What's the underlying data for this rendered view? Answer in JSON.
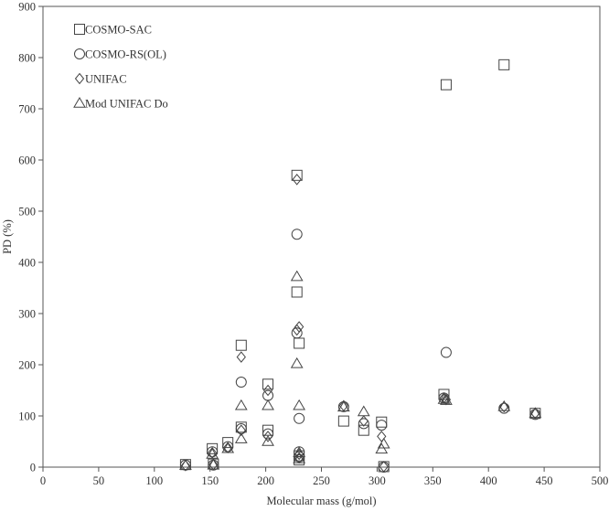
{
  "chart_data": {
    "type": "scatter",
    "title": "",
    "xlabel": "Molecular mass (g/mol)",
    "ylabel": "PD (%)",
    "xlim": [
      0,
      500
    ],
    "ylim": [
      0,
      900
    ],
    "xticks": [
      "0",
      "50",
      "100",
      "150",
      "200",
      "250",
      "300",
      "350",
      "400",
      "450",
      "500"
    ],
    "yticks": [
      "0",
      "100",
      "200",
      "300",
      "400",
      "500",
      "600",
      "700",
      "800",
      "900"
    ],
    "grid": false,
    "legend_position": "top-left",
    "series": [
      {
        "name": "COSMO-SAC",
        "marker": "square",
        "points": [
          [
            128,
            5
          ],
          [
            152,
            36
          ],
          [
            153,
            6
          ],
          [
            166,
            48
          ],
          [
            178,
            238
          ],
          [
            178,
            78
          ],
          [
            202,
            162
          ],
          [
            202,
            72
          ],
          [
            228,
            570
          ],
          [
            228,
            342
          ],
          [
            230,
            242
          ],
          [
            230,
            22
          ],
          [
            230,
            14
          ],
          [
            270,
            90
          ],
          [
            288,
            72
          ],
          [
            304,
            88
          ],
          [
            306,
            1
          ],
          [
            360,
            142
          ],
          [
            362,
            747
          ],
          [
            414,
            786
          ],
          [
            442,
            105
          ]
        ]
      },
      {
        "name": "COSMO-RS(OL)",
        "marker": "circle",
        "points": [
          [
            128,
            4
          ],
          [
            152,
            30
          ],
          [
            153,
            4
          ],
          [
            166,
            40
          ],
          [
            178,
            166
          ],
          [
            178,
            75
          ],
          [
            202,
            140
          ],
          [
            202,
            65
          ],
          [
            228,
            455
          ],
          [
            228,
            262
          ],
          [
            230,
            95
          ],
          [
            230,
            30
          ],
          [
            230,
            20
          ],
          [
            270,
            118
          ],
          [
            288,
            85
          ],
          [
            304,
            82
          ],
          [
            306,
            0
          ],
          [
            360,
            135
          ],
          [
            362,
            224
          ],
          [
            414,
            115
          ],
          [
            442,
            103
          ]
        ]
      },
      {
        "name": "UNIFAC",
        "marker": "diamond",
        "points": [
          [
            128,
            3
          ],
          [
            152,
            28
          ],
          [
            153,
            5
          ],
          [
            166,
            38
          ],
          [
            178,
            215
          ],
          [
            178,
            72
          ],
          [
            202,
            150
          ],
          [
            202,
            60
          ],
          [
            228,
            562
          ],
          [
            228,
            268
          ],
          [
            230,
            274
          ],
          [
            230,
            25
          ],
          [
            230,
            18
          ],
          [
            270,
            120
          ],
          [
            288,
            90
          ],
          [
            304,
            60
          ],
          [
            306,
            1
          ],
          [
            360,
            135
          ],
          [
            362,
            132
          ],
          [
            414,
            118
          ],
          [
            442,
            105
          ]
        ]
      },
      {
        "name": "Mod UNIFAC Do",
        "marker": "triangle",
        "points": [
          [
            128,
            3
          ],
          [
            152,
            25
          ],
          [
            153,
            4
          ],
          [
            166,
            36
          ],
          [
            178,
            120
          ],
          [
            178,
            55
          ],
          [
            202,
            120
          ],
          [
            202,
            50
          ],
          [
            228,
            372
          ],
          [
            228,
            202
          ],
          [
            230,
            120
          ],
          [
            230,
            28
          ],
          [
            230,
            16
          ],
          [
            270,
            117
          ],
          [
            288,
            108
          ],
          [
            304,
            35
          ],
          [
            306,
            45
          ],
          [
            360,
            132
          ],
          [
            362,
            130
          ],
          [
            414,
            118
          ],
          [
            442,
            105
          ]
        ]
      }
    ]
  }
}
